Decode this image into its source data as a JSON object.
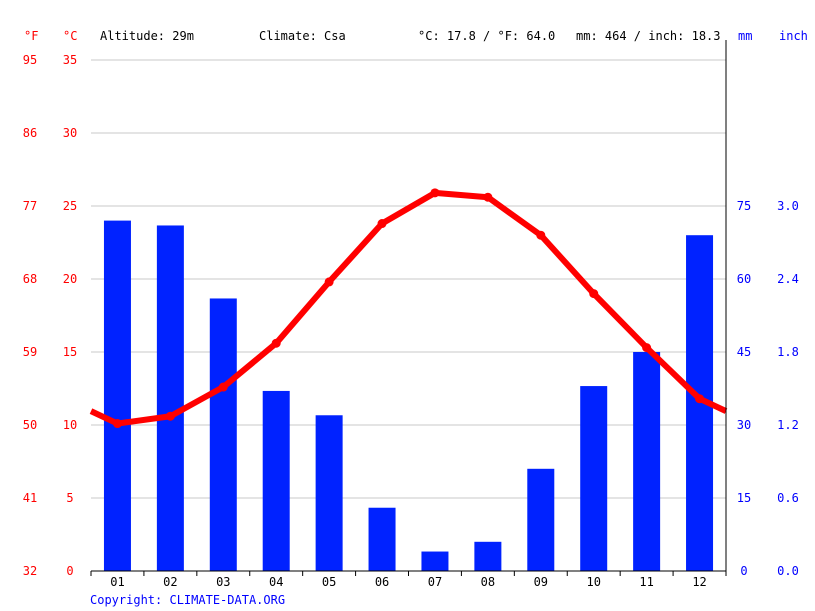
{
  "header": {
    "f_unit": "°F",
    "c_unit": "°C",
    "altitude": "Altitude: 29m",
    "climate": "Climate: Csa",
    "avg_temp": "°C: 17.8 / °F: 64.0",
    "precip_total": "mm: 464 / inch: 18.3",
    "mm_unit": "mm",
    "inch_unit": "inch"
  },
  "copyright": "Copyright: CLIMATE-DATA.ORG",
  "chart_data": {
    "type": "bar+line",
    "categories": [
      "01",
      "02",
      "03",
      "04",
      "05",
      "06",
      "07",
      "08",
      "09",
      "10",
      "11",
      "12"
    ],
    "series": [
      {
        "values": [
          72,
          71,
          56,
          37,
          32,
          13,
          4,
          6,
          21,
          38,
          45,
          69
        ],
        "kind": "bar",
        "axis": "precipitation",
        "color": "#0022ff"
      },
      {
        "values": [
          10.1,
          10.6,
          12.6,
          15.6,
          19.8,
          23.8,
          25.9,
          25.6,
          23.0,
          19.0,
          15.3,
          11.8
        ],
        "kind": "line",
        "axis": "temperature",
        "color": "#ff0000"
      }
    ],
    "temp_axis": {
      "range_c": [
        0,
        35
      ],
      "ticks_c": [
        "0",
        "5",
        "10",
        "15",
        "20",
        "25",
        "30",
        "35"
      ],
      "ticks_f": [
        "32",
        "41",
        "50",
        "59",
        "68",
        "77",
        "86",
        "95"
      ]
    },
    "precip_axis": {
      "range_mm": [
        0,
        105
      ],
      "ticks_mm": [
        "0",
        "15",
        "30",
        "45",
        "60",
        "75"
      ],
      "ticks_inch": [
        "0.0",
        "0.6",
        "1.2",
        "1.8",
        "2.4",
        "3.0"
      ]
    },
    "grid": true,
    "colors": {
      "temperature": "#ff0000",
      "precipitation": "#0022ff",
      "grid": "#c8c8c8"
    }
  }
}
